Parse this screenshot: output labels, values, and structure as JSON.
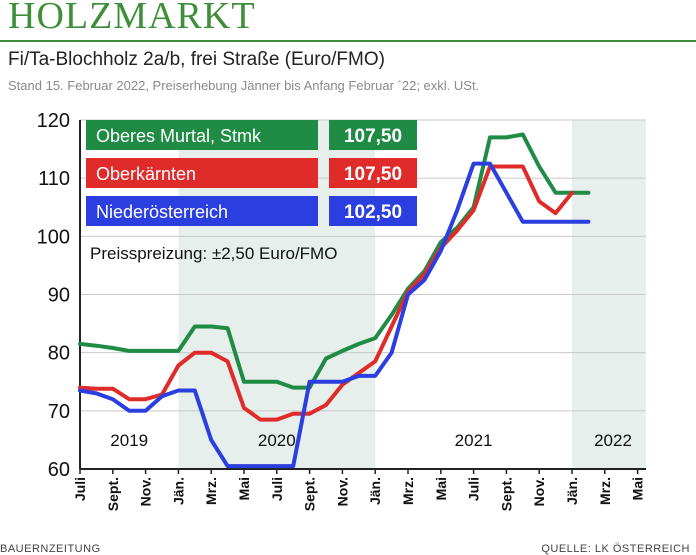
{
  "header": {
    "title": "HOLZMARKT",
    "subtitle": "Fi/Ta-Blochholz 2a/b, frei Straße (Euro/FMO)",
    "stand": "Stand 15. Februar 2022, Preiserhebung Jänner bis Anfang Februar ´22; exkl. USt."
  },
  "footer": {
    "left": "BAUERNZEITUNG",
    "right": "QUELLE: LK ÖSTERREICH"
  },
  "chart_data": {
    "type": "line",
    "title": "Fi/Ta-Blochholz 2a/b, frei Straße (Euro/FMO)",
    "ylim": [
      60,
      120
    ],
    "yticks": [
      60,
      70,
      80,
      90,
      100,
      110,
      120
    ],
    "x_tick_labels": [
      "Juli",
      "Sept.",
      "Nov.",
      "Jän.",
      "Mrz.",
      "Mai",
      "Juli",
      "Sept.",
      "Nov.",
      "Jän.",
      "Mrz.",
      "Mai",
      "Juli",
      "Sept.",
      "Nov.",
      "Jän.",
      "Mrz.",
      "Mai"
    ],
    "year_labels": [
      "2019",
      "2020",
      "2021",
      "2022"
    ],
    "annotation": "Preisspreizung: ±2,50 Euro/FMO",
    "series": [
      {
        "name": "Oberes Murtal, Stmk",
        "latest": "107,50",
        "color": "#1f8b45",
        "values": [
          81.5,
          81.2,
          80.8,
          80.3,
          80.3,
          80.3,
          80.3,
          84.5,
          84.5,
          84.2,
          75,
          75,
          75,
          74,
          74,
          79,
          80.3,
          81.5,
          82.5,
          86.5,
          91,
          94,
          99,
          101.5,
          105,
          117,
          117,
          117.5,
          112,
          107.5,
          107.5,
          107.5
        ]
      },
      {
        "name": "Oberkärnten",
        "latest": "107,50",
        "color": "#e02b2b",
        "values": [
          74,
          73.8,
          73.8,
          72,
          72,
          72.8,
          77.8,
          80,
          80,
          78.5,
          70.5,
          68.5,
          68.5,
          69.5,
          69.5,
          71,
          74.5,
          76.5,
          78.5,
          84.5,
          90.5,
          93.5,
          98,
          101,
          104.5,
          112,
          112,
          112,
          106,
          104,
          107.5,
          null
        ]
      },
      {
        "name": "Niederösterreich",
        "latest": "102,50",
        "color": "#2b3fe0",
        "values": [
          73.5,
          73,
          72,
          70,
          70,
          72.5,
          73.5,
          73.5,
          65,
          60.5,
          60.5,
          60.5,
          60.5,
          60.5,
          75,
          75,
          75,
          76,
          76,
          80,
          90,
          92.5,
          97.5,
          104.5,
          112.5,
          112.5,
          107.5,
          102.5,
          102.5,
          102.5,
          102.5,
          102.5
        ]
      }
    ]
  }
}
